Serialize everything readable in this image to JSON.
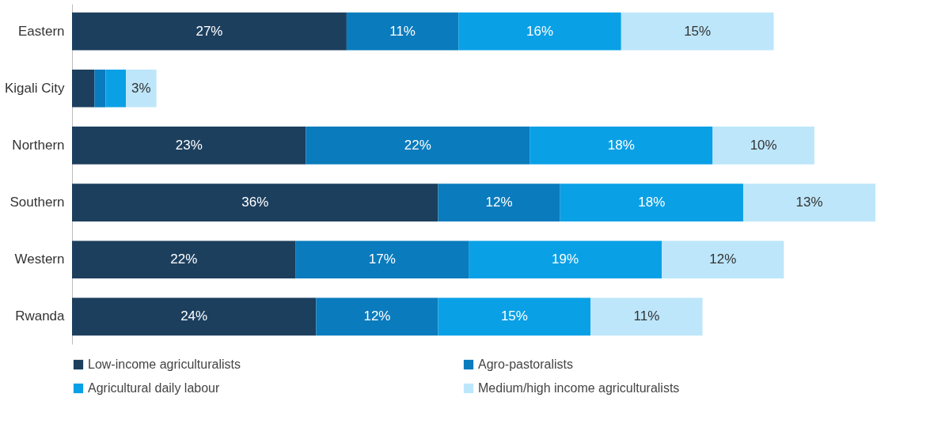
{
  "chart_data": {
    "type": "bar",
    "orientation": "horizontal",
    "stacked": true,
    "legend": "bottom",
    "categories": [
      "Eastern",
      "Kigali City",
      "Northern",
      "Southern",
      "Western",
      "Rwanda"
    ],
    "series": [
      {
        "name": "Low-income agriculturalists",
        "color": "#1c3f5e",
        "values": [
          27,
          2.2,
          23,
          36,
          22,
          24
        ],
        "value_labels": [
          "27%",
          null,
          "23%",
          "36%",
          "22%",
          "24%"
        ]
      },
      {
        "name": "Agro-pastoralists",
        "color": "#0a7bbd",
        "values": [
          11,
          1.1,
          22,
          12,
          17,
          12
        ],
        "value_labels": [
          "11%",
          null,
          "22%",
          "12%",
          "17%",
          "12%"
        ]
      },
      {
        "name": "Agricultural daily labour",
        "color": "#0aa0e6",
        "values": [
          16,
          2,
          18,
          18,
          19,
          15
        ],
        "value_labels": [
          "16%",
          null,
          "18%",
          "18%",
          "19%",
          "15%"
        ]
      },
      {
        "name": "Medium/high income agriculturalists",
        "color": "#bde6fa",
        "values": [
          15,
          3,
          10,
          13,
          12,
          11
        ],
        "value_labels": [
          "15%",
          "3%",
          "10%",
          "13%",
          "12%",
          "11%"
        ]
      }
    ]
  }
}
